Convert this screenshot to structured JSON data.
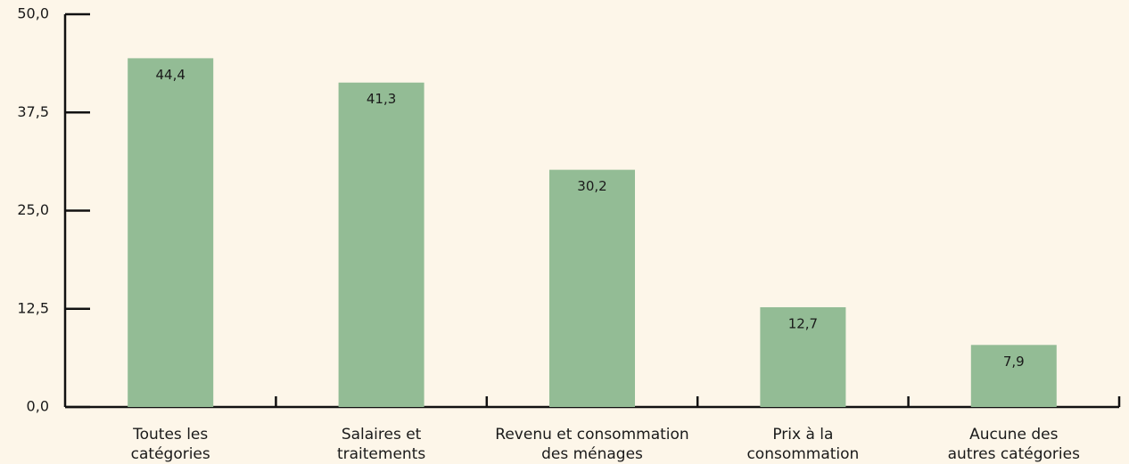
{
  "chart_data": {
    "type": "bar",
    "categories": [
      [
        "Toutes les",
        "catégories"
      ],
      [
        "Salaires et",
        "traitements"
      ],
      [
        "Revenu et consommation",
        "des ménages"
      ],
      [
        "Prix à la",
        "consommation"
      ],
      [
        "Aucune des",
        "autres catégories"
      ]
    ],
    "values": [
      44.4,
      41.3,
      30.2,
      12.7,
      7.9
    ],
    "value_labels": [
      "44,4",
      "41,3",
      "30,2",
      "12,7",
      "7,9"
    ],
    "color": "#93bc95",
    "ylim": [
      0,
      50
    ],
    "yticks": [
      {
        "value": 0,
        "label": "0,0"
      },
      {
        "value": 12.5,
        "label": "12,5"
      },
      {
        "value": 25,
        "label": "25,0"
      },
      {
        "value": 37.5,
        "label": "37,5"
      },
      {
        "value": 50,
        "label": "50,0"
      }
    ]
  }
}
